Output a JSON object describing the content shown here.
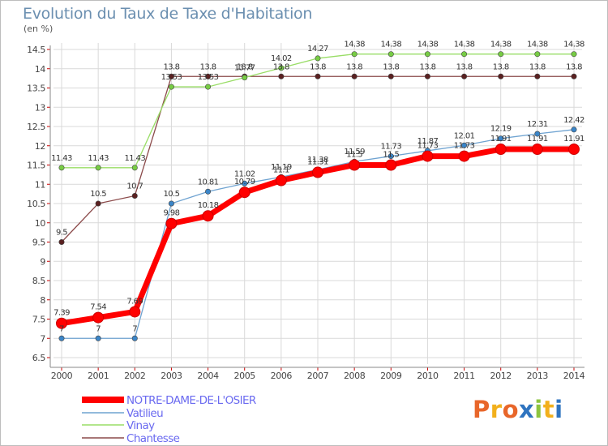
{
  "header": {
    "title": "Evolution du Taux de Taxe d'Habitation",
    "unit": "(en %)"
  },
  "logo": {
    "letters": [
      "P",
      "r",
      "o",
      "x",
      "i",
      "t",
      "i"
    ],
    "colors": [
      "#e8662a",
      "#f2b01c",
      "#e8662a",
      "#2f74c0",
      "#8cc43f",
      "#f2b01c",
      "#2f74c0"
    ]
  },
  "chart_data": {
    "type": "line",
    "title": "Evolution du Taux de Taxe d'Habitation",
    "ylabel": "(en %)",
    "xlabel": "",
    "x": [
      2000,
      2001,
      2002,
      2003,
      2004,
      2005,
      2006,
      2007,
      2008,
      2009,
      2010,
      2011,
      2012,
      2013,
      2014
    ],
    "ylim": [
      6.5,
      14.5
    ],
    "yticks": [
      6.5,
      7,
      7.5,
      8,
      8.5,
      9,
      9.5,
      10,
      10.5,
      11,
      11.5,
      12,
      12.5,
      13,
      13.5,
      14,
      14.5
    ],
    "grid": true,
    "legend_position": "bottom-left",
    "series": [
      {
        "name": "NOTRE-DAME-DE-L'OSIER",
        "color": "#ff0000",
        "marker_stroke": "#cc0000",
        "emphasis": true,
        "values": [
          7.39,
          7.54,
          7.69,
          9.98,
          10.18,
          10.79,
          11.1,
          11.31,
          11.5,
          11.5,
          11.73,
          11.73,
          11.91,
          11.91,
          11.91
        ],
        "labels": [
          "7.39",
          "7.54",
          "7.69",
          "9.98",
          "10.18",
          "10.79",
          "11.1",
          "11.31",
          "11.5",
          "11.5",
          "11.73",
          "11.73",
          "11.91",
          "11.91",
          "11.91"
        ]
      },
      {
        "name": "Vatilieu",
        "color": "#6fa3d1",
        "marker_fill": "#3a85c8",
        "values": [
          7,
          7,
          7,
          10.5,
          10.81,
          11.02,
          11.19,
          11.38,
          11.59,
          11.73,
          11.87,
          12.01,
          12.19,
          12.31,
          12.42
        ],
        "labels": [
          "7",
          "7",
          "7",
          "10.5",
          "10.81",
          "11.02",
          "11.19",
          "11.38",
          "11.59",
          "11.73",
          "11.87",
          "12.01",
          "12.19",
          "12.31",
          "12.42"
        ]
      },
      {
        "name": "Vinay",
        "color": "#99dd66",
        "marker_fill": "#77cc44",
        "values": [
          11.43,
          11.43,
          11.43,
          13.53,
          13.53,
          13.77,
          14.02,
          14.27,
          14.38,
          14.38,
          14.38,
          14.38,
          14.38,
          14.38,
          14.38
        ],
        "labels": [
          "11.43",
          "11.43",
          "11.43",
          "13.53",
          "13.53",
          "13.77",
          "14.02",
          "14.27",
          "14.38",
          "14.38",
          "14.38",
          "14.38",
          "14.38",
          "14.38",
          "14.38"
        ]
      },
      {
        "name": "Chantesse",
        "color": "#8b4a4a",
        "marker_fill": "#5a2020",
        "values": [
          9.5,
          10.5,
          10.7,
          13.8,
          13.8,
          13.8,
          13.8,
          13.8,
          13.8,
          13.8,
          13.8,
          13.8,
          13.8,
          13.8,
          13.8
        ],
        "labels": [
          "9.5",
          "10.5",
          "10.7",
          "13.8",
          "13.8",
          "13.8",
          "13.8",
          "13.8",
          "13.8",
          "13.8",
          "13.8",
          "13.8",
          "13.8",
          "13.8",
          "13.8"
        ]
      }
    ]
  }
}
